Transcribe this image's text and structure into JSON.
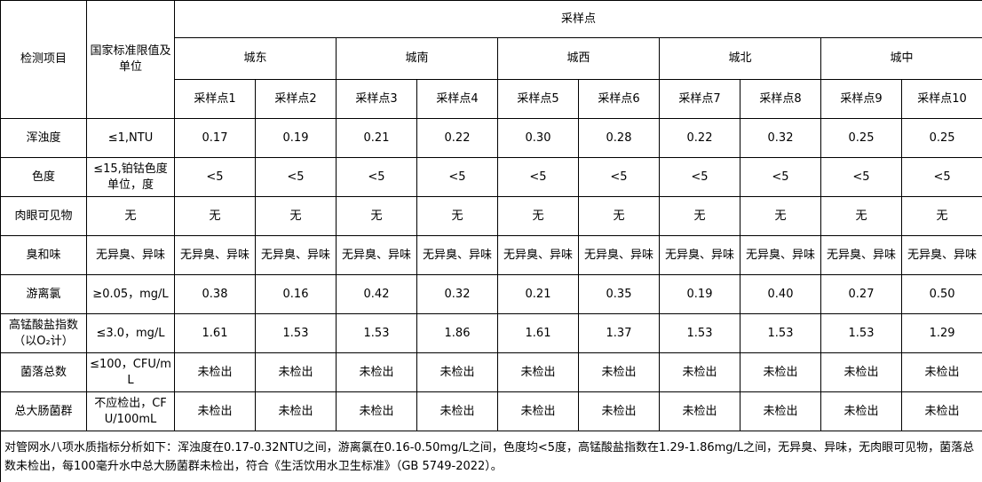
{
  "header": {
    "item": "检测项目",
    "standard": "国家标准限值及单位",
    "group": "采样点",
    "districts": [
      "城东",
      "城南",
      "城西",
      "城北",
      "城中"
    ],
    "points": [
      "采样点1",
      "采样点2",
      "采样点3",
      "采样点4",
      "采样点5",
      "采样点6",
      "采样点7",
      "采样点8",
      "采样点9",
      "采样点10"
    ]
  },
  "table": {
    "rows": [
      [
        "浑浊度",
        "≤1,NTU",
        "0.17",
        "0.19",
        "0.21",
        "0.22",
        "0.30",
        "0.28",
        "0.22",
        "0.32",
        "0.25",
        "0.25"
      ],
      [
        "色度",
        "≤15,铂钴色度单位，度",
        "<5",
        "<5",
        "<5",
        "<5",
        "<5",
        "<5",
        "<5",
        "<5",
        "<5",
        "<5"
      ],
      [
        "肉眼可见物",
        "无",
        "无",
        "无",
        "无",
        "无",
        "无",
        "无",
        "无",
        "无",
        "无",
        "无"
      ],
      [
        "臭和味",
        "无异臭、异味",
        "无异臭、异味",
        "无异臭、异味",
        "无异臭、异味",
        "无异臭、异味",
        "无异臭、异味",
        "无异臭、异味",
        "无异臭、异味",
        "无异臭、异味",
        "无异臭、异味",
        "无异臭、异味"
      ],
      [
        "游离氯",
        "≥0.05，mg/L",
        "0.38",
        "0.16",
        "0.42",
        "0.32",
        "0.21",
        "0.35",
        "0.19",
        "0.40",
        "0.27",
        "0.50"
      ],
      [
        "高锰酸盐指数（以O₂计）",
        "≤3.0，mg/L",
        "1.61",
        "1.53",
        "1.53",
        "1.86",
        "1.61",
        "1.37",
        "1.53",
        "1.53",
        "1.53",
        "1.29"
      ],
      [
        "菌落总数",
        "≤100，CFU/mL",
        "未检出",
        "未检出",
        "未检出",
        "未检出",
        "未检出",
        "未检出",
        "未检出",
        "未检出",
        "未检出",
        "未检出"
      ],
      [
        "总大肠菌群",
        "不应检出，CFU/100mL",
        "未检出",
        "未检出",
        "未检出",
        "未检出",
        "未检出",
        "未检出",
        "未检出",
        "未检出",
        "未检出",
        "未检出"
      ]
    ]
  },
  "note": "对管网水八项水质指标分析如下：浑浊度在0.17-0.32NTU之间，游离氯在0.16-0.50mg/L之间，色度均<5度，高锰酸盐指数在1.29-1.86mg/L之间，无异臭、异味，无肉眼可见物，菌落总数未检出，每100毫升水中总大肠菌群未检出，符合《生活饮用水卫生标准》（GB 5749-2022）。"
}
